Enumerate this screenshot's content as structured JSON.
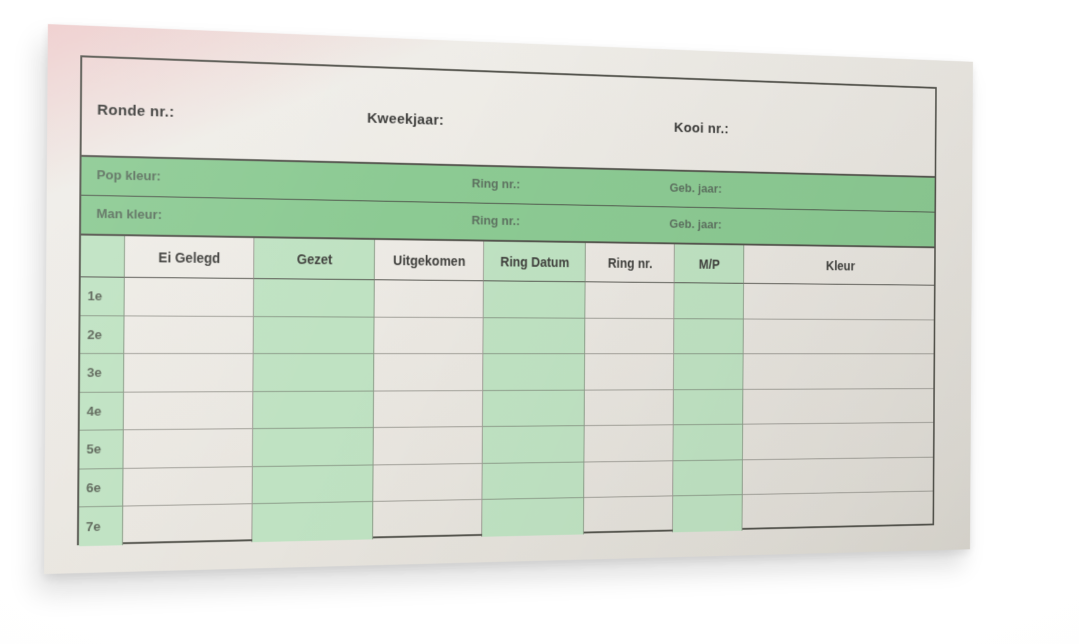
{
  "form": {
    "top_fields": [
      "Ronde nr.:",
      "Kweekjaar:",
      "Kooi nr.:"
    ],
    "bands": [
      {
        "kleur": "Pop kleur:",
        "ring": "Ring nr.:",
        "geb": "Geb. jaar:"
      },
      {
        "kleur": "Man kleur:",
        "ring": "Ring nr.:",
        "geb": "Geb. jaar:"
      }
    ],
    "table": {
      "columns": [
        {
          "label": "",
          "green": true
        },
        {
          "label": "Ei Gelegd",
          "green": false
        },
        {
          "label": "Gezet",
          "green": true
        },
        {
          "label": "Uitgekomen",
          "green": false
        },
        {
          "label": "Ring Datum",
          "green": true
        },
        {
          "label": "Ring nr.",
          "green": false
        },
        {
          "label": "M/P",
          "green": true
        },
        {
          "label": "Kleur",
          "green": false
        }
      ],
      "row_labels": [
        "1e",
        "2e",
        "3e",
        "4e",
        "5e",
        "6e",
        "7e"
      ],
      "cell_values": []
    },
    "colors": {
      "band_green": "#8cca93",
      "column_green": "#bfe2c2",
      "paper": "#eae7e1",
      "border_dark": "#55554e"
    }
  }
}
